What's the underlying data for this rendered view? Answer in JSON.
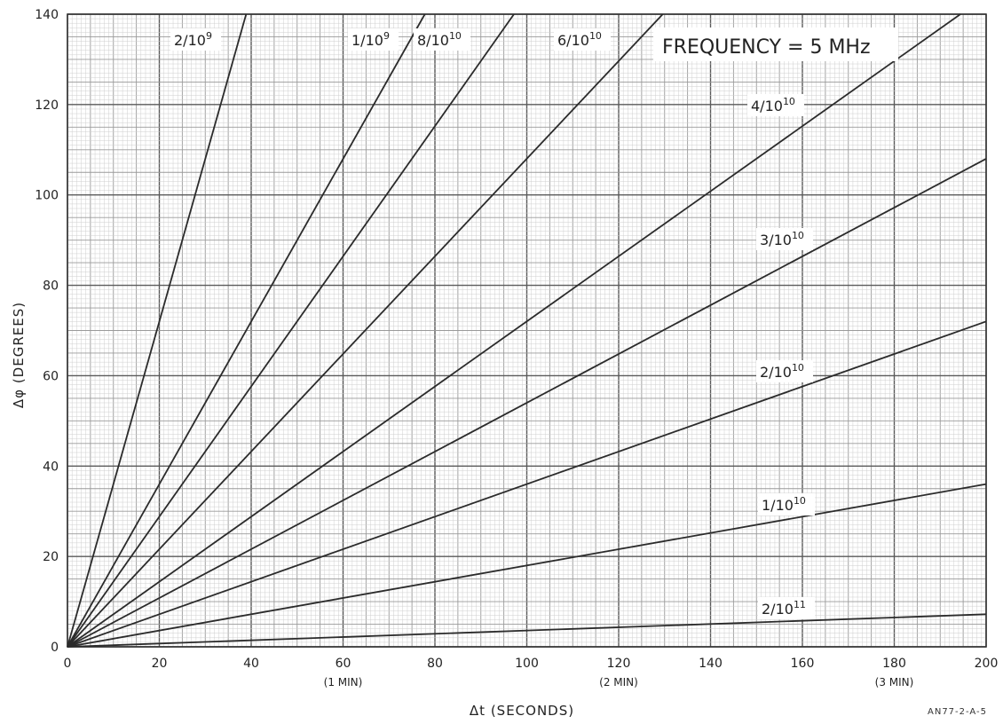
{
  "chart_data": {
    "type": "line",
    "title": "FREQUENCY = 5 MHz",
    "xlabel": "Δt (SECONDS)",
    "ylabel": "Δφ (DEGREES)",
    "xlim": [
      0,
      200
    ],
    "ylim": [
      0,
      140
    ],
    "x_ticks": [
      0,
      20,
      40,
      60,
      80,
      100,
      120,
      140,
      160,
      180,
      200
    ],
    "y_ticks": [
      0,
      20,
      40,
      60,
      80,
      100,
      120,
      140
    ],
    "x_sublabels": [
      {
        "x": 60,
        "text": "(1 MIN)"
      },
      {
        "x": 120,
        "text": "(2 MIN)"
      },
      {
        "x": 180,
        "text": "(3 MIN)"
      }
    ],
    "grid": true,
    "series": [
      {
        "base": "2/10",
        "exp": "9",
        "x": [
          0,
          38.9
        ],
        "y": [
          0,
          140
        ]
      },
      {
        "base": "1/10",
        "exp": "9",
        "x": [
          0,
          77.8
        ],
        "y": [
          0,
          140
        ]
      },
      {
        "base": "8/10",
        "exp": "10",
        "x": [
          0,
          97.2
        ],
        "y": [
          0,
          140
        ]
      },
      {
        "base": "6/10",
        "exp": "10",
        "x": [
          0,
          129.6
        ],
        "y": [
          0,
          140
        ]
      },
      {
        "base": "4/10",
        "exp": "10",
        "x": [
          0,
          194.4
        ],
        "y": [
          0,
          140
        ]
      },
      {
        "base": "3/10",
        "exp": "10",
        "x": [
          0,
          200
        ],
        "y": [
          0,
          108
        ]
      },
      {
        "base": "2/10",
        "exp": "10",
        "x": [
          0,
          200
        ],
        "y": [
          0,
          72
        ]
      },
      {
        "base": "1/10",
        "exp": "10",
        "x": [
          0,
          200
        ],
        "y": [
          0,
          36
        ]
      },
      {
        "base": "2/10",
        "exp": "11",
        "x": [
          0,
          200
        ],
        "y": [
          0,
          7.2
        ]
      }
    ],
    "annotation": "AN77-2-A-5"
  }
}
